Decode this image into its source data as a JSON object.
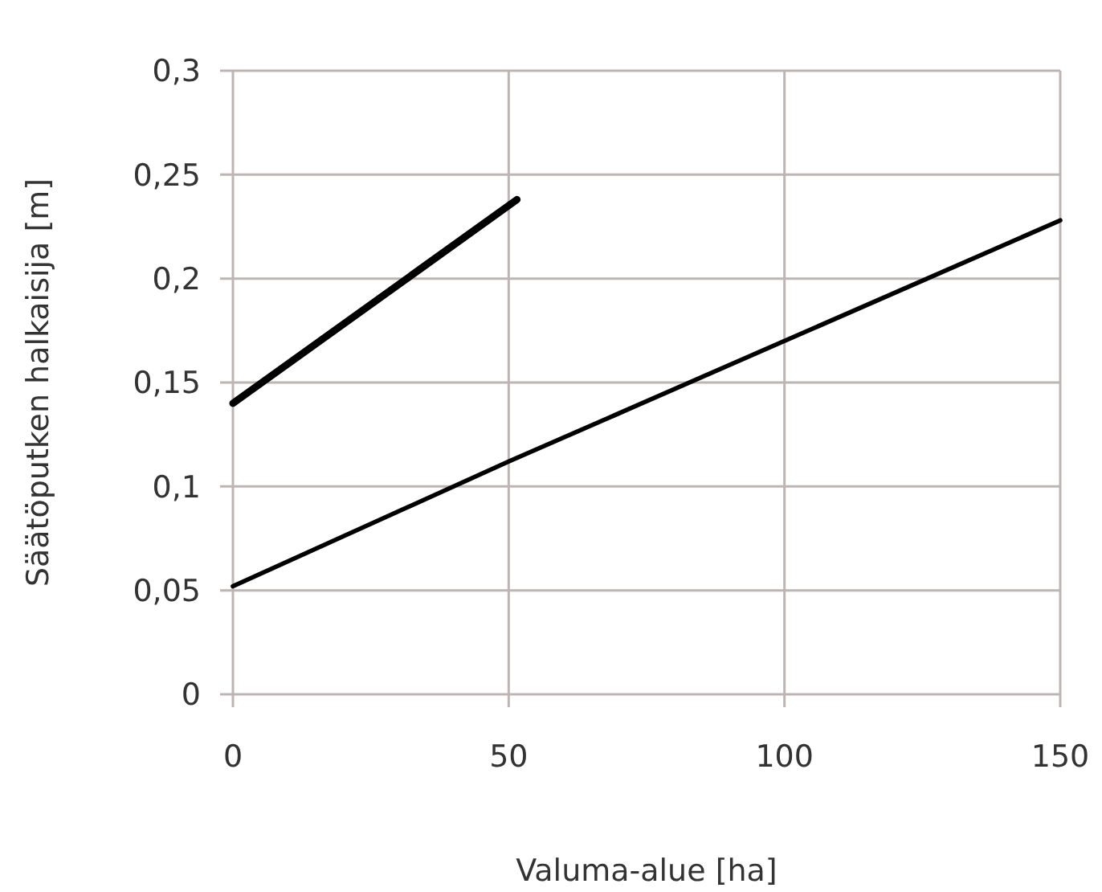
{
  "chart_data": {
    "type": "line",
    "xlabel": "Valuma-alue [ha]",
    "ylabel": "Säätöputken halkaisija [m]",
    "xlim": [
      0,
      150
    ],
    "xticks": [
      0,
      50,
      100,
      150
    ],
    "ylim": [
      0,
      0.3
    ],
    "yticks": [
      0,
      {
        "value": 0.05,
        "label": "0,05"
      },
      {
        "value": 0.1,
        "label": "0,1"
      },
      {
        "value": 0.15,
        "label": "0,15"
      },
      {
        "value": 0.2,
        "label": "0,2"
      },
      {
        "value": 0.25,
        "label": "0,25"
      },
      {
        "value": 0.3,
        "label": "0,3"
      }
    ],
    "grid": true,
    "series": [
      {
        "color": "#000000",
        "x": [
          0,
          51.5
        ],
        "values": [
          0.14,
          0.238
        ]
      },
      {
        "color": "#000000",
        "x": [
          0,
          50,
          100,
          150
        ],
        "values": [
          0.052,
          0.112,
          0.17,
          0.228
        ]
      }
    ]
  }
}
